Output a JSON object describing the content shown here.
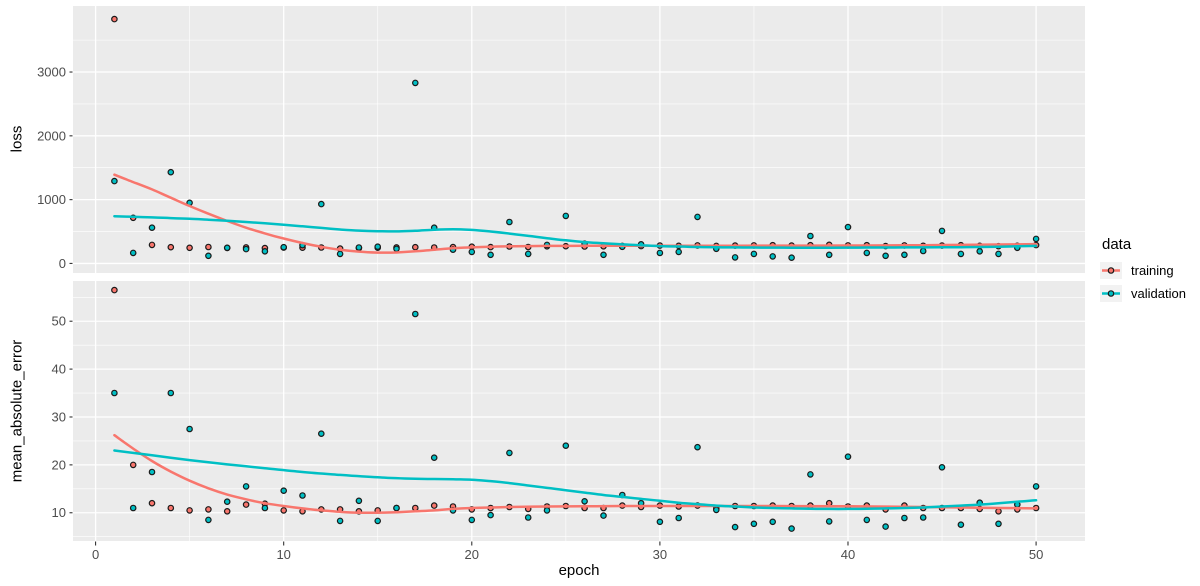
{
  "legend": {
    "title": "data",
    "items": [
      {
        "label": "training",
        "series": "training"
      },
      {
        "label": "validation",
        "series": "validation"
      }
    ],
    "position": "right"
  },
  "colors": {
    "training": "#F8766D",
    "validation": "#00BFC4",
    "panel_background": "#EBEBEB",
    "grid": "#FFFFFF",
    "axis_text": "#4D4D4D",
    "tick_mark": "#333333",
    "point_outline": "#1A1A1A",
    "legend_key_background": "#F2F2F2"
  },
  "chart_data": {
    "type": "scatter",
    "title": "",
    "xlabel": "epoch",
    "xlim": [
      -1.2,
      52.6
    ],
    "x_breaks": [
      0,
      10,
      20,
      30,
      40,
      50
    ],
    "x_minor_breaks": [
      5,
      15,
      25,
      35,
      45
    ],
    "legend_position": "right",
    "grid": "major+minor",
    "epochs": [
      1,
      2,
      3,
      4,
      5,
      6,
      7,
      8,
      9,
      10,
      11,
      12,
      13,
      14,
      15,
      16,
      17,
      18,
      19,
      20,
      21,
      22,
      23,
      24,
      25,
      26,
      27,
      28,
      29,
      30,
      31,
      32,
      33,
      34,
      35,
      36,
      37,
      38,
      39,
      40,
      41,
      42,
      43,
      44,
      45,
      46,
      47,
      48,
      49,
      50
    ],
    "panels": [
      {
        "ylabel": "loss",
        "ylim": [
          -150,
          4035
        ],
        "y_breaks": [
          0,
          1000,
          2000,
          3000
        ],
        "y_minor_breaks": [
          500,
          1500,
          2500,
          3500
        ],
        "series": [
          {
            "name": "training",
            "points": [
              3830,
              715,
              290,
              255,
              245,
              258,
              243,
              252,
              240,
              248,
              246,
              250,
              232,
              240,
              246,
              252,
              255,
              250,
              256,
              262,
              256,
              266,
              258,
              268,
              270,
              265,
              268,
              275,
              272,
              280,
              276,
              282,
              275,
              280,
              282,
              285,
              280,
              286,
              292,
              282,
              286,
              272,
              282,
              276,
              280,
              286,
              276,
              270,
              276,
              288
            ]
          },
          {
            "name": "validation",
            "points": [
              1290,
              165,
              560,
              1430,
              950,
              120,
              245,
              225,
              190,
              255,
              285,
              930,
              150,
              250,
              262,
              230,
              2830,
              560,
              215,
              180,
              135,
              650,
              150,
              290,
              745,
              310,
              135,
              260,
              300,
              165,
              180,
              730,
              230,
              95,
              150,
              110,
              90,
              430,
              135,
              570,
              165,
              120,
              135,
              195,
              510,
              150,
              190,
              150,
              245,
              385
            ]
          }
        ],
        "smooth": [
          {
            "name": "training",
            "line": [
              [
                1,
                1390
              ],
              [
                2,
                1275
              ],
              [
                3,
                1160
              ],
              [
                4,
                1030
              ],
              [
                5,
                900
              ],
              [
                6,
                780
              ],
              [
                7,
                665
              ],
              [
                8,
                560
              ],
              [
                9,
                470
              ],
              [
                10,
                390
              ],
              [
                11,
                320
              ],
              [
                12,
                260
              ],
              [
                13,
                215
              ],
              [
                14,
                185
              ],
              [
                15,
                170
              ],
              [
                16,
                172
              ],
              [
                17,
                190
              ],
              [
                18,
                215
              ],
              [
                19,
                238
              ],
              [
                20,
                252
              ],
              [
                21,
                261
              ],
              [
                22,
                268
              ],
              [
                23,
                272
              ],
              [
                24,
                274
              ],
              [
                25,
                275
              ],
              [
                26,
                276
              ],
              [
                28,
                277
              ],
              [
                30,
                278
              ],
              [
                32,
                278
              ],
              [
                34,
                278
              ],
              [
                36,
                279
              ],
              [
                38,
                280
              ],
              [
                40,
                281
              ],
              [
                42,
                283
              ],
              [
                44,
                286
              ],
              [
                46,
                290
              ],
              [
                48,
                296
              ],
              [
                50,
                303
              ]
            ]
          },
          {
            "name": "validation",
            "line": [
              [
                1,
                740
              ],
              [
                2,
                731
              ],
              [
                3,
                722
              ],
              [
                4,
                711
              ],
              [
                5,
                700
              ],
              [
                6,
                685
              ],
              [
                7,
                668
              ],
              [
                8,
                650
              ],
              [
                9,
                630
              ],
              [
                10,
                607
              ],
              [
                11,
                582
              ],
              [
                12,
                557
              ],
              [
                13,
                532
              ],
              [
                14,
                515
              ],
              [
                15,
                505
              ],
              [
                16,
                502
              ],
              [
                17,
                512
              ],
              [
                18,
                528
              ],
              [
                19,
                535
              ],
              [
                20,
                525
              ],
              [
                21,
                500
              ],
              [
                22,
                468
              ],
              [
                23,
                432
              ],
              [
                24,
                396
              ],
              [
                25,
                362
              ],
              [
                26,
                335
              ],
              [
                27,
                315
              ],
              [
                28,
                298
              ],
              [
                29,
                285
              ],
              [
                30,
                272
              ],
              [
                31,
                265
              ],
              [
                32,
                258
              ],
              [
                33,
                254
              ],
              [
                34,
                251
              ],
              [
                35,
                249
              ],
              [
                36,
                248
              ],
              [
                37,
                247
              ],
              [
                38,
                247
              ],
              [
                39,
                247
              ],
              [
                40,
                248
              ],
              [
                41,
                249
              ],
              [
                42,
                250
              ],
              [
                43,
                251
              ],
              [
                44,
                252
              ],
              [
                45,
                253
              ],
              [
                46,
                255
              ],
              [
                47,
                258
              ],
              [
                48,
                262
              ],
              [
                49,
                268
              ],
              [
                50,
                275
              ]
            ]
          }
        ]
      },
      {
        "ylabel": "mean_absolute_error",
        "ylim": [
          4.1,
          58.4
        ],
        "y_breaks": [
          10,
          20,
          30,
          40,
          50
        ],
        "y_minor_breaks": [
          5,
          15,
          25,
          35,
          45,
          55
        ],
        "series": [
          {
            "name": "training",
            "points": [
              56.5,
              20,
              12,
              11,
              10.5,
              10.7,
              10.3,
              11.7,
              11.9,
              10.5,
              10.3,
              10.7,
              10.7,
              10.3,
              10.5,
              11,
              11,
              11.5,
              11.3,
              10.7,
              11,
              11.2,
              10.8,
              11.3,
              11.4,
              11,
              11,
              11.5,
              11.2,
              11.5,
              11.3,
              11.5,
              11,
              11.4,
              11.4,
              11.5,
              11.4,
              11.5,
              12,
              11.3,
              11.5,
              10.7,
              11.5,
              11,
              11,
              11,
              10.8,
              10.3,
              10.7,
              11
            ]
          },
          {
            "name": "validation",
            "points": [
              35,
              11,
              18.5,
              35,
              27.5,
              8.5,
              12.3,
              15.5,
              11,
              14.6,
              13.6,
              26.5,
              8.3,
              12.5,
              8.3,
              11,
              51.5,
              21.5,
              10.5,
              8.5,
              9.5,
              22.5,
              9,
              10.5,
              24,
              12.4,
              9.4,
              13.7,
              12,
              8.1,
              8.9,
              23.7,
              10.6,
              7,
              7.7,
              8.1,
              6.7,
              18,
              8.2,
              21.7,
              8.5,
              7.1,
              8.9,
              9,
              19.5,
              7.5,
              12.1,
              7.7,
              11.7,
              15.5
            ]
          }
        ],
        "smooth": [
          {
            "name": "training",
            "line": [
              [
                1,
                26.2
              ],
              [
                2,
                23.4
              ],
              [
                3,
                20.8
              ],
              [
                4,
                18.6
              ],
              [
                5,
                16.7
              ],
              [
                6,
                15.1
              ],
              [
                7,
                13.8
              ],
              [
                8,
                12.8
              ],
              [
                9,
                12.0
              ],
              [
                10,
                11.4
              ],
              [
                11,
                10.9
              ],
              [
                12,
                10.5
              ],
              [
                13,
                10.2
              ],
              [
                14,
                10.0
              ],
              [
                15,
                10.0
              ],
              [
                16,
                10.1
              ],
              [
                17,
                10.3
              ],
              [
                18,
                10.5
              ],
              [
                19,
                10.8
              ],
              [
                20,
                11.0
              ],
              [
                21,
                11.1
              ],
              [
                22,
                11.2
              ],
              [
                24,
                11.3
              ],
              [
                26,
                11.35
              ],
              [
                28,
                11.4
              ],
              [
                32,
                11.4
              ],
              [
                36,
                11.4
              ],
              [
                40,
                11.35
              ],
              [
                44,
                11.2
              ],
              [
                47,
                11.05
              ],
              [
                50,
                10.9
              ]
            ]
          },
          {
            "name": "validation",
            "line": [
              [
                1,
                23.0
              ],
              [
                3,
                22.0
              ],
              [
                5,
                21.0
              ],
              [
                7,
                20.1
              ],
              [
                9,
                19.3
              ],
              [
                11,
                18.5
              ],
              [
                13,
                17.9
              ],
              [
                15,
                17.4
              ],
              [
                17,
                17.1
              ],
              [
                18,
                17.05
              ],
              [
                19,
                17.0
              ],
              [
                20,
                16.9
              ],
              [
                21,
                16.6
              ],
              [
                22,
                16.2
              ],
              [
                23,
                15.7
              ],
              [
                24,
                15.2
              ],
              [
                25,
                14.7
              ],
              [
                26,
                14.2
              ],
              [
                27,
                13.7
              ],
              [
                28,
                13.3
              ],
              [
                29,
                12.9
              ],
              [
                30,
                12.5
              ],
              [
                31,
                12.1
              ],
              [
                32,
                11.8
              ],
              [
                33,
                11.5
              ],
              [
                34,
                11.3
              ],
              [
                35,
                11.1
              ],
              [
                36,
                11.0
              ],
              [
                37,
                10.9
              ],
              [
                38,
                10.85
              ],
              [
                39,
                10.8
              ],
              [
                40,
                10.8
              ],
              [
                41,
                10.85
              ],
              [
                42,
                10.9
              ],
              [
                43,
                11.0
              ],
              [
                44,
                11.1
              ],
              [
                45,
                11.3
              ],
              [
                46,
                11.5
              ],
              [
                47,
                11.7
              ],
              [
                48,
                12.0
              ],
              [
                49,
                12.3
              ],
              [
                50,
                12.6
              ]
            ]
          }
        ]
      }
    ]
  }
}
